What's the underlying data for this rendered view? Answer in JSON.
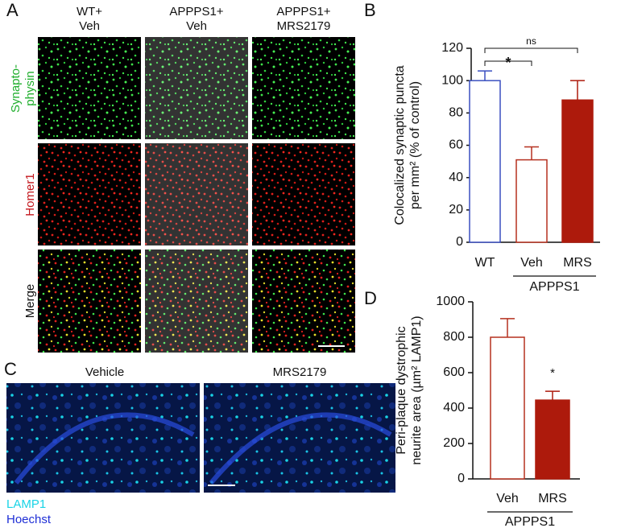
{
  "panel_labels": [
    "A",
    "B",
    "C",
    "D"
  ],
  "panel_a": {
    "columns": [
      [
        "WT+",
        "Veh"
      ],
      [
        "APPPS1+",
        "Veh"
      ],
      [
        "APPPS1+",
        "MRS2179"
      ]
    ],
    "rows": [
      {
        "lines": [
          "Synapto-",
          "physin"
        ],
        "color": "#1fae2c"
      },
      {
        "lines": [
          "Homer1"
        ],
        "color": "#c4161c"
      },
      {
        "lines": [
          "Merge"
        ],
        "color": "#111111"
      }
    ]
  },
  "panel_c": {
    "columns": [
      "Vehicle",
      "MRS2179"
    ],
    "legend": [
      {
        "label": "LAMP1",
        "color": "#19d4e6"
      },
      {
        "label": "Hoechst",
        "color": "#1f2fd6"
      }
    ]
  },
  "chart_data": [
    {
      "type": "bar",
      "ylabel": [
        "Colocalized synaptic puncta",
        "per mm² (% of control)"
      ],
      "categories": [
        "WT",
        "Veh",
        "MRS"
      ],
      "values": [
        100,
        51,
        88
      ],
      "errors": [
        6,
        8,
        12
      ],
      "colors": [
        "#3a4fc0",
        "#b5301f",
        "#ad1a0c"
      ],
      "filled": [
        false,
        false,
        true
      ],
      "group_label": "APPPS1",
      "comparisons": [
        {
          "pair": [
            0,
            1
          ],
          "label": "*"
        },
        {
          "pair": [
            0,
            2
          ],
          "label": "ns"
        }
      ],
      "ylim": [
        0,
        120
      ],
      "yticks": [
        0,
        20,
        40,
        60,
        80,
        100,
        120
      ]
    },
    {
      "type": "bar",
      "ylabel": [
        "Peri-plaque dystrophic",
        "neurite area (µm² LAMP1)"
      ],
      "categories": [
        "Veh",
        "MRS"
      ],
      "values": [
        800,
        445
      ],
      "errors": [
        105,
        50
      ],
      "colors": [
        "#b5301f",
        "#ad1a0c"
      ],
      "filled": [
        false,
        true
      ],
      "group_label": "APPPS1",
      "annotations": [
        {
          "index": 1,
          "label": "*"
        }
      ],
      "ylim": [
        0,
        1000
      ],
      "yticks": [
        0,
        200,
        400,
        600,
        800,
        1000
      ]
    }
  ]
}
